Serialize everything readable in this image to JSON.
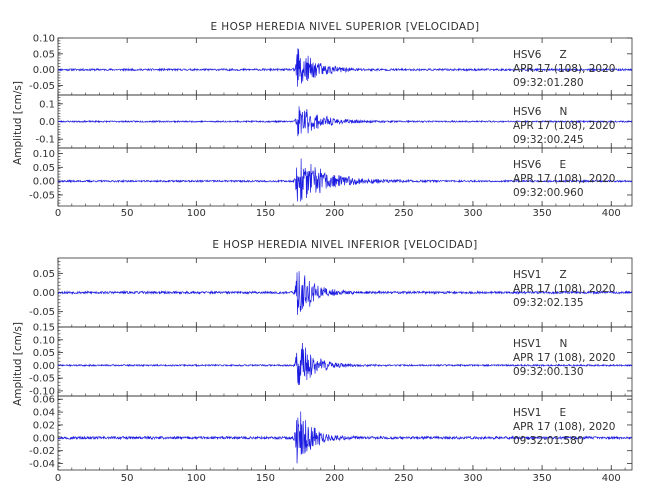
{
  "chart_data": [
    {
      "type": "line",
      "title": "E HOSP HEREDIA NIVEL SUPERIOR [VELOCIDAD]",
      "ylabel": "Amplitud [cm/s]",
      "x_ticks": [
        "0",
        "50",
        "100",
        "150",
        "200",
        "250",
        "300",
        "350",
        "400"
      ],
      "xlim": [
        0,
        415
      ],
      "series": [
        {
          "station": "HSV6",
          "channel": "Z",
          "date": "APR 17 (108), 2020",
          "time": "09:32:01.280",
          "y_ticks": [
            "0.10",
            "0.05",
            "0.00",
            "-0.05"
          ],
          "ylim": [
            -0.08,
            0.1
          ],
          "trace": {
            "onset": 173,
            "peak": 0.09,
            "decay": 12,
            "noise": 0.003,
            "seed": 11
          }
        },
        {
          "station": "HSV6",
          "channel": "N",
          "date": "APR 17 (108), 2020",
          "time": "09:32:00.245",
          "y_ticks": [
            "0.1",
            "0.0",
            "-0.1"
          ],
          "ylim": [
            -0.15,
            0.15
          ],
          "trace": {
            "onset": 173,
            "peak": 0.12,
            "decay": 14,
            "noise": 0.004,
            "seed": 23
          }
        },
        {
          "station": "HSV6",
          "channel": "E",
          "date": "APR 17 (108), 2020",
          "time": "09:32:00.960",
          "y_ticks": [
            "0.10",
            "0.05",
            "0.00",
            "-0.05"
          ],
          "ylim": [
            -0.09,
            0.12
          ],
          "trace": {
            "onset": 173,
            "peak": 0.1,
            "decay": 20,
            "noise": 0.003,
            "seed": 37
          }
        }
      ]
    },
    {
      "type": "line",
      "title": "E HOSP HEREDIA NIVEL INFERIOR [VELOCIDAD]",
      "ylabel": "Amplitud [cm/s]",
      "x_ticks": [
        "0",
        "50",
        "100",
        "150",
        "200",
        "250",
        "300",
        "350",
        "400"
      ],
      "xlim": [
        0,
        415
      ],
      "series": [
        {
          "station": "HSV1",
          "channel": "Z",
          "date": "APR 17 (108), 2020",
          "time": "09:32:02.135",
          "y_ticks": [
            "0.05",
            "0.00",
            "-0.05"
          ],
          "ylim": [
            -0.09,
            0.09
          ],
          "trace": {
            "onset": 173,
            "peak": 0.09,
            "decay": 10,
            "noise": 0.003,
            "seed": 53
          }
        },
        {
          "station": "HSV1",
          "channel": "N",
          "date": "APR 17 (108), 2020",
          "time": "09:32:00.130",
          "y_ticks": [
            "0.15",
            "0.10",
            "0.05",
            "0.00",
            "-0.05",
            "-0.10"
          ],
          "ylim": [
            -0.12,
            0.15
          ],
          "trace": {
            "onset": 173,
            "peak": 0.14,
            "decay": 10,
            "noise": 0.003,
            "seed": 71
          }
        },
        {
          "station": "HSV1",
          "channel": "E",
          "date": "APR 17 (108), 2020",
          "time": "09:32:01.580",
          "y_ticks": [
            "0.06",
            "0.04",
            "0.02",
            "0.00",
            "-0.02",
            "-0.04"
          ],
          "ylim": [
            -0.05,
            0.065
          ],
          "trace": {
            "onset": 173,
            "peak": 0.06,
            "decay": 9,
            "noise": 0.002,
            "seed": 97
          }
        }
      ]
    }
  ],
  "colors": {
    "trace": "#1c1ce0",
    "axis": "#303030",
    "text": "#303030"
  }
}
